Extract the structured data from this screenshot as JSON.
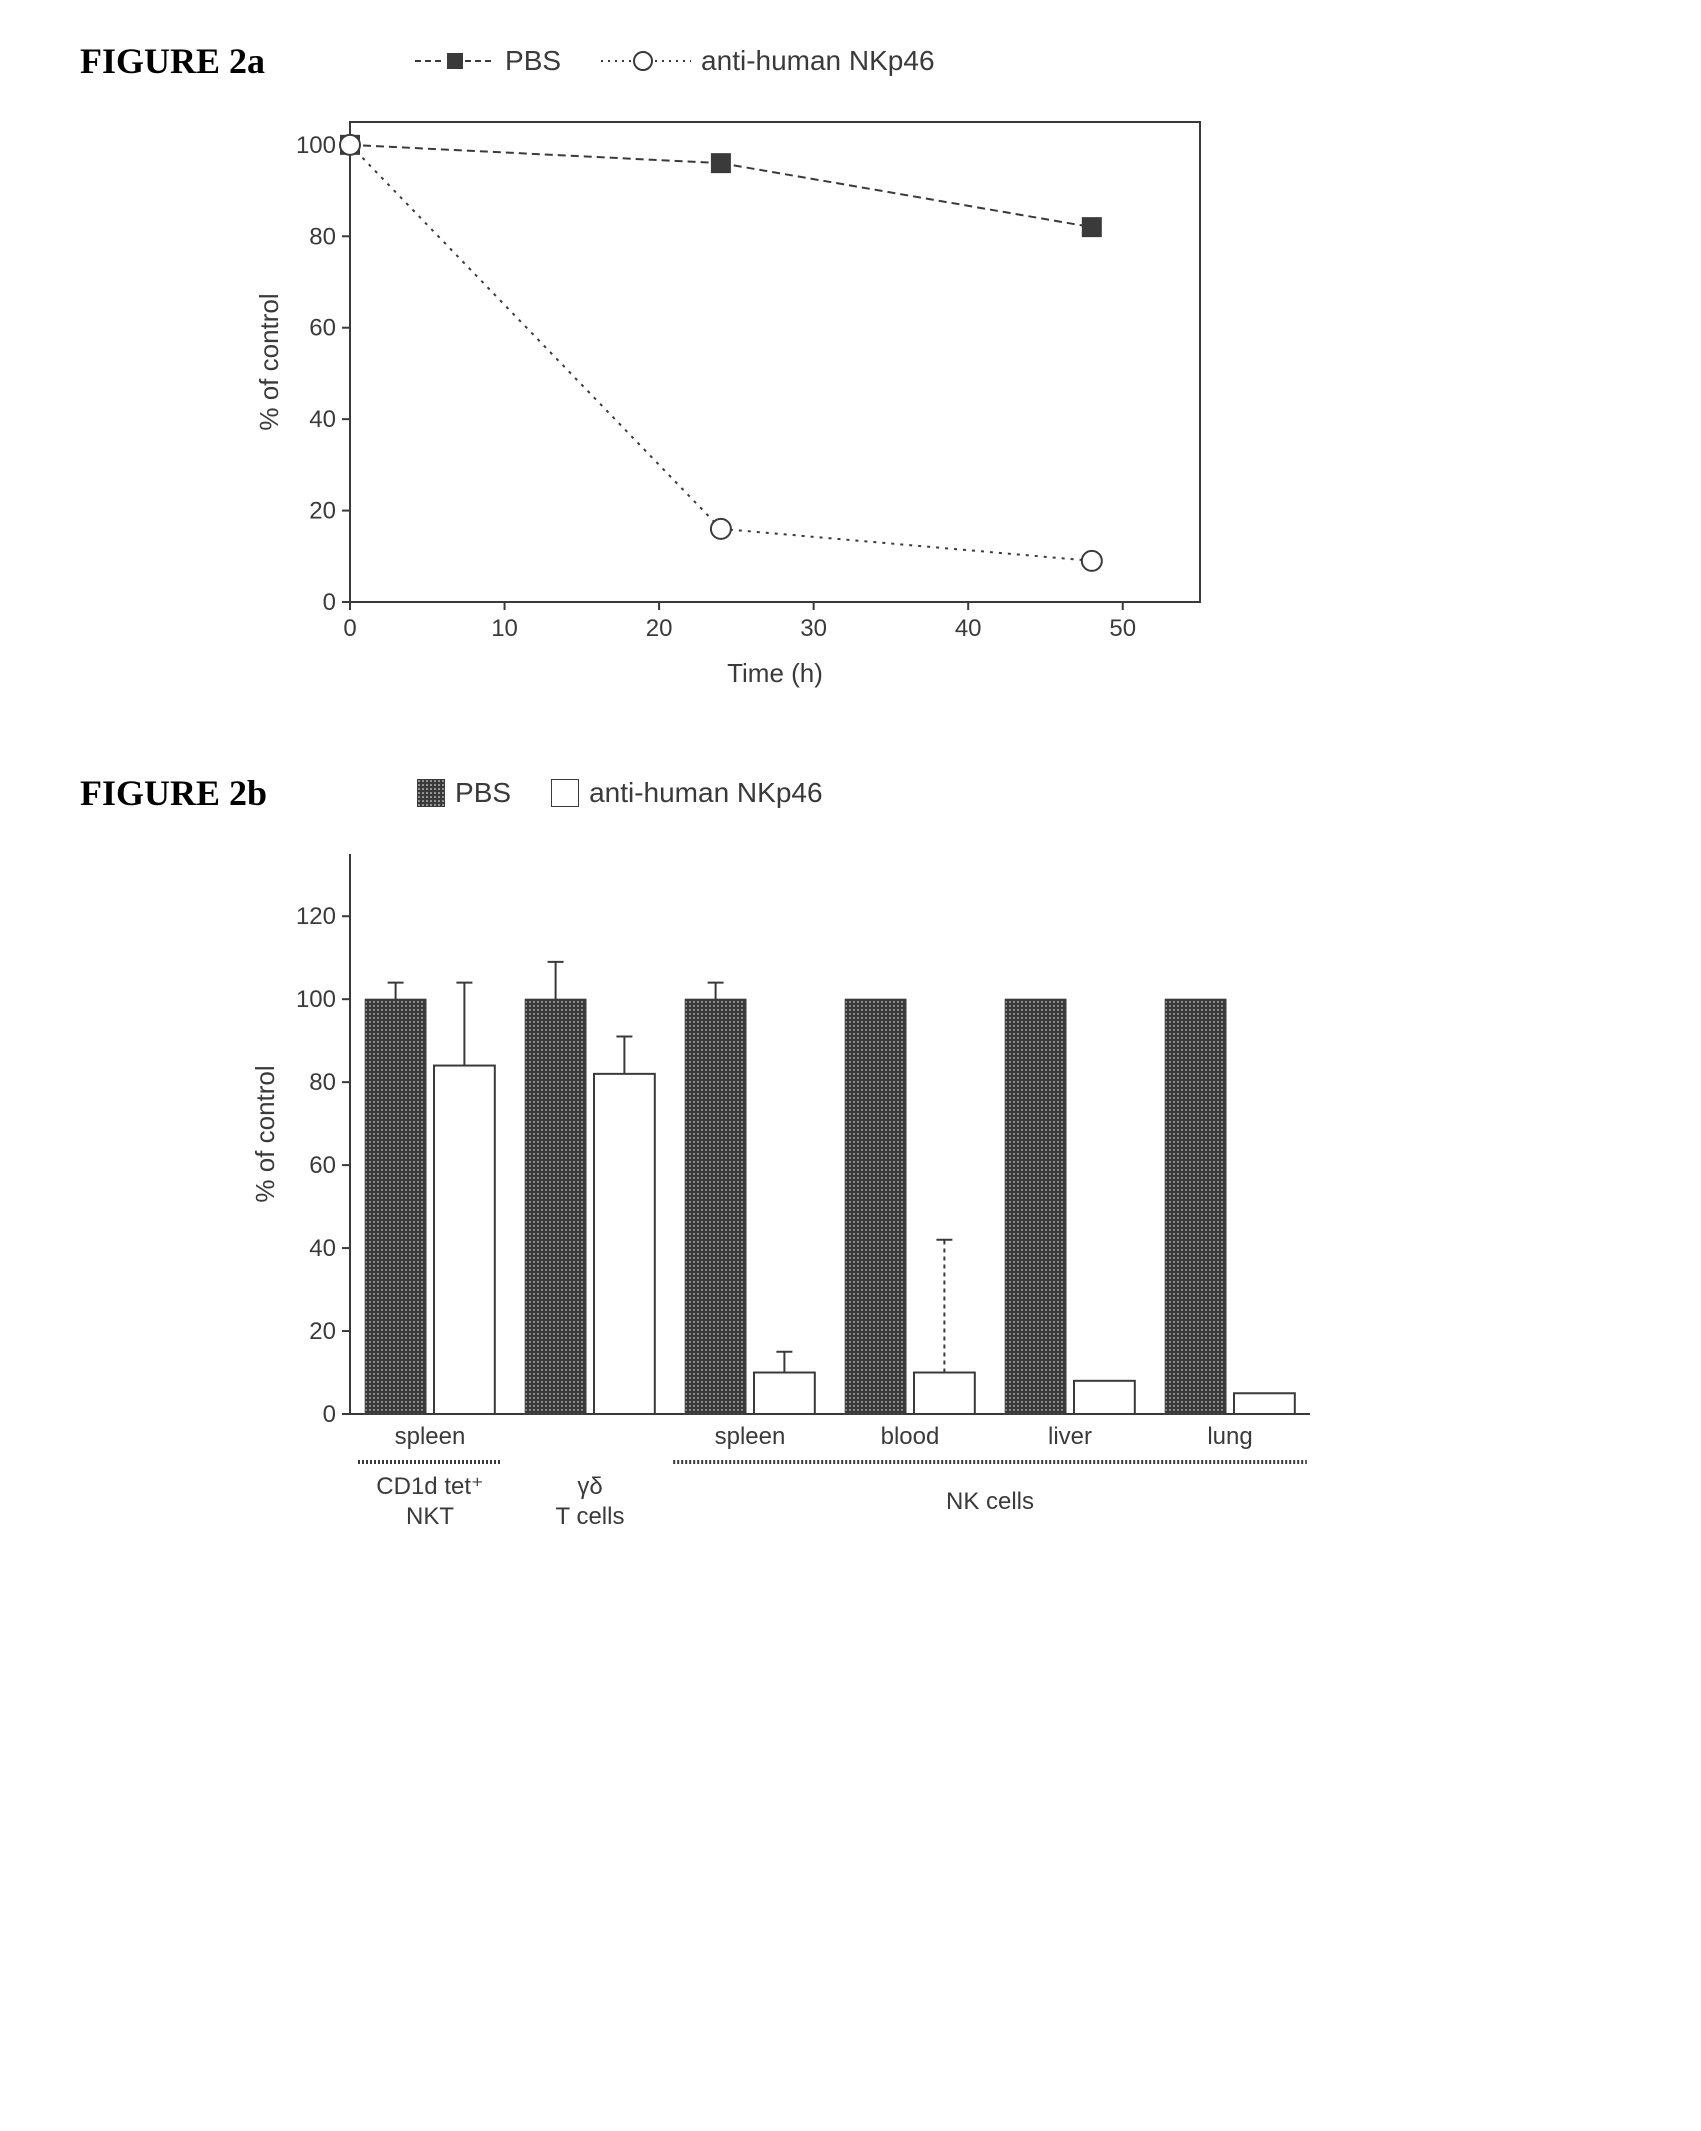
{
  "figure_a": {
    "title": "FIGURE 2a",
    "type": "line",
    "legend": {
      "series1": {
        "label": "PBS",
        "marker": "filled-square",
        "line_style": "dash",
        "color": "#3a3a3a"
      },
      "series2": {
        "label": "anti-human NKp46",
        "marker": "open-circle",
        "line_style": "dot",
        "color": "#3a3a3a"
      }
    },
    "xlabel": "Time (h)",
    "ylabel": "% of control",
    "xlim": [
      0,
      55
    ],
    "ylim": [
      0,
      105
    ],
    "xticks": [
      0,
      10,
      20,
      30,
      40,
      50
    ],
    "yticks": [
      0,
      20,
      40,
      60,
      80,
      100
    ],
    "series": {
      "pbs": {
        "x": [
          0,
          24,
          48
        ],
        "y": [
          100,
          96,
          82
        ]
      },
      "anti": {
        "x": [
          0,
          24,
          48
        ],
        "y": [
          100,
          16,
          9
        ]
      }
    },
    "axis_color": "#3a3a3a",
    "text_color": "#3a3a3a",
    "background_color": "#ffffff",
    "label_fontsize": 26,
    "tick_fontsize": 24,
    "marker_size": 10,
    "line_width": 2
  },
  "figure_b": {
    "title": "FIGURE 2b",
    "type": "bar",
    "legend": {
      "series1": {
        "label": "PBS",
        "fill": "pattern",
        "color": "#3a3a3a"
      },
      "series2": {
        "label": "anti-human NKp46",
        "fill": "none",
        "color": "#3a3a3a"
      }
    },
    "ylabel": "% of control",
    "ylim": [
      0,
      135
    ],
    "yticks": [
      0,
      20,
      40,
      60,
      80,
      100,
      120
    ],
    "categories": [
      "spleen",
      "",
      "spleen",
      "blood",
      "liver",
      "lung"
    ],
    "group_labels_lower": [
      {
        "label_line1": "CD1d tet⁺",
        "label_line2": "NKT",
        "span": 1
      },
      {
        "label_line1": "γδ",
        "label_line2": "T cells",
        "span": 1
      },
      {
        "label_line1": "",
        "label_line2": "NK cells",
        "span": 4
      }
    ],
    "data": {
      "pbs": {
        "values": [
          100,
          100,
          100,
          100,
          100,
          100
        ],
        "errors": [
          4,
          9,
          4,
          0,
          0,
          0
        ]
      },
      "anti": {
        "values": [
          84,
          82,
          10,
          10,
          8,
          5
        ],
        "errors": [
          20,
          9,
          5,
          9,
          0,
          0
        ]
      }
    },
    "special_error_anti_blood_upper": 32,
    "axis_color": "#3a3a3a",
    "text_color": "#3a3a3a",
    "background_color": "#ffffff",
    "bar_colors": {
      "pbs": "pattern-dark",
      "anti": "#ffffff"
    },
    "label_fontsize": 26,
    "tick_fontsize": 24,
    "bar_width": 0.38,
    "bar_gap": 0.05
  }
}
